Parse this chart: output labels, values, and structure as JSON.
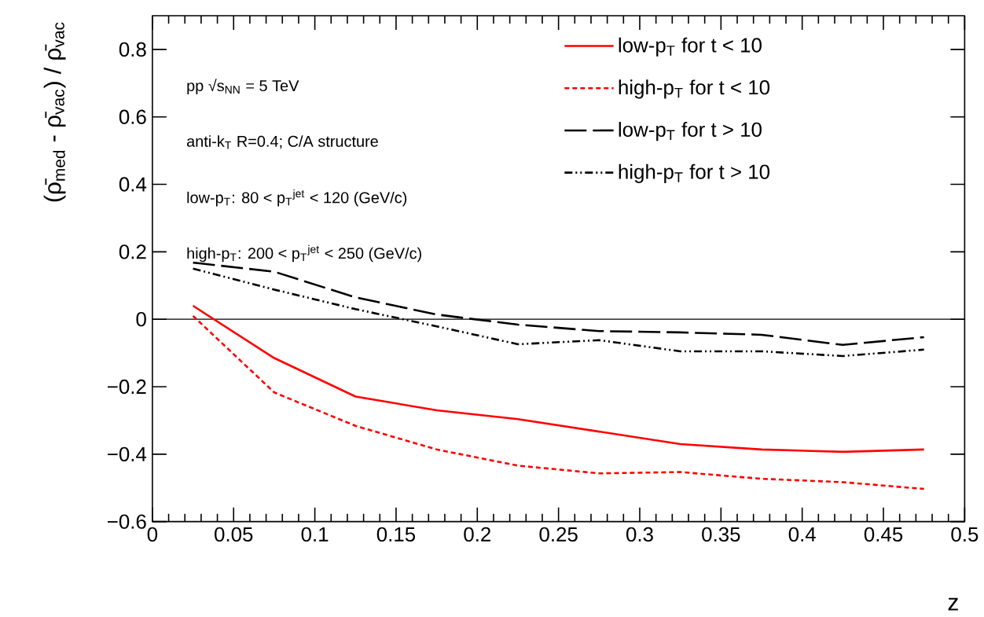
{
  "chart_data": {
    "type": "line",
    "xlabel": "z",
    "ylabel": "(ρ̄$_{med}$ - ρ̄$_{vac}$) / ρ̄$_{vac}$",
    "annotations": [
      "pp √s$_{NN}$ = 5 TeV",
      "anti-k$_{T}$ R=0.4; C/A structure",
      "low-p$_{T}$: 80 < p$_{T}$$^{jet}$ < 120 (GeV/c)",
      "high-p$_{T}$: 200 < p$_{T}$$^{jet}$ < 250 (GeV/c)"
    ],
    "x": [
      0.025,
      0.075,
      0.125,
      0.175,
      0.225,
      0.275,
      0.325,
      0.375,
      0.425,
      0.475
    ],
    "series": [
      {
        "name": "low-p$_{T}$ for t < 10",
        "color": "#ff0000",
        "line_style": "solid",
        "values": [
          0.04,
          -0.115,
          -0.229,
          -0.27,
          -0.296,
          -0.333,
          -0.37,
          -0.386,
          -0.393,
          -0.386
        ]
      },
      {
        "name": "high-p$_{T}$ for t < 10",
        "color": "#ff0000",
        "line_style": "dotted",
        "values": [
          0.01,
          -0.217,
          -0.316,
          -0.386,
          -0.434,
          -0.457,
          -0.453,
          -0.473,
          -0.483,
          -0.503
        ]
      },
      {
        "name": "low-p$_{T}$ for t > 10",
        "color": "#000000",
        "line_style": "dashed",
        "values": [
          0.168,
          0.141,
          0.065,
          0.014,
          -0.016,
          -0.035,
          -0.039,
          -0.046,
          -0.076,
          -0.053
        ]
      },
      {
        "name": "high-p$_{T}$ for t > 10",
        "color": "#000000",
        "line_style": "dashdot",
        "values": [
          0.15,
          0.088,
          0.03,
          -0.021,
          -0.074,
          -0.062,
          -0.095,
          -0.095,
          -0.109,
          -0.09
        ]
      }
    ],
    "xlim": [
      0,
      0.5
    ],
    "xticks": [
      0,
      0.05,
      0.1,
      0.15,
      0.2,
      0.25,
      0.3,
      0.35,
      0.4,
      0.45,
      0.5
    ],
    "ylim": [
      -0.6,
      0.9
    ],
    "yticks": [
      {
        "value": -0.6,
        "label": "−0.6"
      },
      {
        "value": -0.4,
        "label": "−0.4"
      },
      {
        "value": -0.2,
        "label": "−0.2"
      },
      0,
      0.2,
      0.4,
      0.6,
      0.8
    ],
    "ref_lines": [
      {
        "axis": "y",
        "value": 0,
        "color": "#000000"
      }
    ],
    "grid": false,
    "legend": "top right",
    "marker": "none"
  }
}
